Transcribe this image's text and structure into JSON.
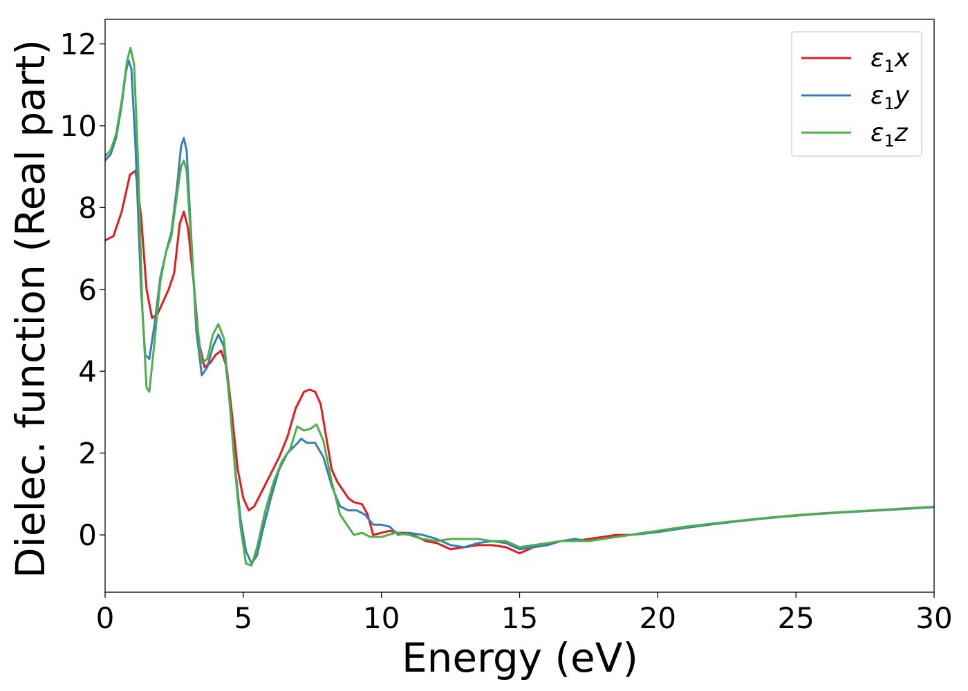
{
  "chart_data": {
    "type": "line",
    "title": "",
    "xlabel": "Energy (eV)",
    "ylabel": "Dielec. function (Real part)",
    "xlim": [
      0,
      30
    ],
    "ylim": [
      -1.4,
      12.6
    ],
    "xticks": [
      0,
      5,
      10,
      15,
      20,
      25,
      30
    ],
    "yticks": [
      0,
      2,
      4,
      6,
      8,
      10,
      12
    ],
    "grid": false,
    "legend_position": "top-right",
    "series": [
      {
        "name": "ε1x",
        "legend_base": "ε",
        "legend_sub": "1",
        "legend_var": "x",
        "color": "#e41a1c",
        "points": [
          [
            0,
            7.2
          ],
          [
            0.3,
            7.3
          ],
          [
            0.6,
            7.9
          ],
          [
            0.9,
            8.8
          ],
          [
            1.1,
            8.9
          ],
          [
            1.3,
            7.8
          ],
          [
            1.5,
            6.0
          ],
          [
            1.7,
            5.3
          ],
          [
            1.9,
            5.4
          ],
          [
            2.1,
            5.7
          ],
          [
            2.3,
            6.0
          ],
          [
            2.5,
            6.4
          ],
          [
            2.7,
            7.6
          ],
          [
            2.85,
            7.9
          ],
          [
            3.0,
            7.5
          ],
          [
            3.2,
            6.2
          ],
          [
            3.4,
            4.7
          ],
          [
            3.6,
            4.1
          ],
          [
            3.8,
            4.2
          ],
          [
            4.0,
            4.4
          ],
          [
            4.2,
            4.5
          ],
          [
            4.4,
            4.1
          ],
          [
            4.6,
            2.9
          ],
          [
            4.8,
            1.6
          ],
          [
            5.0,
            0.9
          ],
          [
            5.2,
            0.6
          ],
          [
            5.4,
            0.7
          ],
          [
            5.7,
            1.1
          ],
          [
            6.0,
            1.5
          ],
          [
            6.3,
            1.9
          ],
          [
            6.6,
            2.4
          ],
          [
            6.9,
            3.1
          ],
          [
            7.2,
            3.5
          ],
          [
            7.4,
            3.55
          ],
          [
            7.6,
            3.5
          ],
          [
            7.8,
            3.2
          ],
          [
            8.0,
            2.4
          ],
          [
            8.2,
            1.6
          ],
          [
            8.4,
            1.3
          ],
          [
            8.6,
            1.1
          ],
          [
            8.8,
            0.9
          ],
          [
            9.0,
            0.8
          ],
          [
            9.3,
            0.75
          ],
          [
            9.5,
            0.5
          ],
          [
            9.7,
            0.0
          ],
          [
            10.0,
            0.05
          ],
          [
            10.3,
            0.1
          ],
          [
            10.6,
            0.05
          ],
          [
            11.0,
            0.05
          ],
          [
            11.3,
            -0.05
          ],
          [
            11.6,
            -0.15
          ],
          [
            12.0,
            -0.2
          ],
          [
            12.5,
            -0.35
          ],
          [
            13.0,
            -0.3
          ],
          [
            13.5,
            -0.25
          ],
          [
            14.0,
            -0.25
          ],
          [
            14.5,
            -0.3
          ],
          [
            15.0,
            -0.45
          ],
          [
            15.5,
            -0.3
          ],
          [
            16.0,
            -0.25
          ],
          [
            16.5,
            -0.15
          ],
          [
            17.0,
            -0.15
          ],
          [
            17.5,
            -0.1
          ],
          [
            18.0,
            -0.05
          ],
          [
            18.5,
            0.0
          ],
          [
            19.0,
            0.0
          ],
          [
            19.5,
            0.05
          ],
          [
            20.0,
            0.1
          ],
          [
            21.0,
            0.2
          ],
          [
            22.0,
            0.27
          ],
          [
            23.0,
            0.35
          ],
          [
            24.0,
            0.42
          ],
          [
            25.0,
            0.48
          ],
          [
            26.0,
            0.53
          ],
          [
            27.0,
            0.57
          ],
          [
            28.0,
            0.6
          ],
          [
            29.0,
            0.64
          ],
          [
            30.0,
            0.68
          ]
        ]
      },
      {
        "name": "ε1y",
        "legend_base": "ε",
        "legend_sub": "1",
        "legend_var": "y",
        "color": "#377eb8",
        "points": [
          [
            0,
            9.15
          ],
          [
            0.2,
            9.3
          ],
          [
            0.4,
            9.7
          ],
          [
            0.6,
            10.5
          ],
          [
            0.75,
            11.3
          ],
          [
            0.85,
            11.6
          ],
          [
            0.95,
            11.4
          ],
          [
            1.1,
            9.5
          ],
          [
            1.3,
            6.0
          ],
          [
            1.45,
            4.4
          ],
          [
            1.6,
            4.3
          ],
          [
            1.8,
            5.2
          ],
          [
            2.0,
            6.3
          ],
          [
            2.2,
            6.9
          ],
          [
            2.4,
            7.4
          ],
          [
            2.6,
            8.5
          ],
          [
            2.75,
            9.5
          ],
          [
            2.85,
            9.7
          ],
          [
            2.95,
            9.4
          ],
          [
            3.1,
            7.5
          ],
          [
            3.3,
            5.0
          ],
          [
            3.5,
            3.9
          ],
          [
            3.7,
            4.1
          ],
          [
            3.9,
            4.6
          ],
          [
            4.1,
            4.9
          ],
          [
            4.3,
            4.6
          ],
          [
            4.5,
            3.3
          ],
          [
            4.7,
            1.7
          ],
          [
            4.9,
            0.4
          ],
          [
            5.1,
            -0.4
          ],
          [
            5.3,
            -0.7
          ],
          [
            5.5,
            -0.5
          ],
          [
            5.7,
            0.1
          ],
          [
            6.0,
            0.9
          ],
          [
            6.3,
            1.6
          ],
          [
            6.6,
            2.0
          ],
          [
            6.9,
            2.2
          ],
          [
            7.1,
            2.35
          ],
          [
            7.3,
            2.25
          ],
          [
            7.6,
            2.25
          ],
          [
            7.9,
            1.9
          ],
          [
            8.2,
            1.2
          ],
          [
            8.5,
            0.7
          ],
          [
            8.8,
            0.6
          ],
          [
            9.1,
            0.6
          ],
          [
            9.4,
            0.5
          ],
          [
            9.7,
            0.25
          ],
          [
            10.0,
            0.25
          ],
          [
            10.3,
            0.2
          ],
          [
            10.6,
            0.0
          ],
          [
            11.0,
            0.05
          ],
          [
            11.5,
            0.0
          ],
          [
            12.0,
            -0.1
          ],
          [
            12.5,
            -0.25
          ],
          [
            13.0,
            -0.3
          ],
          [
            13.5,
            -0.2
          ],
          [
            14.0,
            -0.15
          ],
          [
            14.5,
            -0.2
          ],
          [
            15.0,
            -0.35
          ],
          [
            15.5,
            -0.3
          ],
          [
            16.0,
            -0.25
          ],
          [
            16.5,
            -0.15
          ],
          [
            17.0,
            -0.1
          ],
          [
            17.5,
            -0.15
          ],
          [
            18.0,
            -0.1
          ],
          [
            18.5,
            -0.05
          ],
          [
            19.0,
            0.0
          ],
          [
            19.5,
            0.03
          ],
          [
            20.0,
            0.07
          ],
          [
            21.0,
            0.17
          ],
          [
            22.0,
            0.26
          ],
          [
            23.0,
            0.34
          ],
          [
            24.0,
            0.41
          ],
          [
            25.0,
            0.47
          ],
          [
            26.0,
            0.52
          ],
          [
            27.0,
            0.56
          ],
          [
            28.0,
            0.6
          ],
          [
            29.0,
            0.64
          ],
          [
            30.0,
            0.68
          ]
        ]
      },
      {
        "name": "ε1z",
        "legend_base": "ε",
        "legend_sub": "1",
        "legend_var": "z",
        "color": "#4daf4a",
        "points": [
          [
            0,
            9.25
          ],
          [
            0.2,
            9.4
          ],
          [
            0.4,
            9.8
          ],
          [
            0.6,
            10.6
          ],
          [
            0.8,
            11.6
          ],
          [
            0.92,
            11.9
          ],
          [
            1.05,
            11.5
          ],
          [
            1.2,
            9.0
          ],
          [
            1.35,
            5.5
          ],
          [
            1.5,
            3.6
          ],
          [
            1.6,
            3.5
          ],
          [
            1.8,
            4.8
          ],
          [
            2.0,
            6.2
          ],
          [
            2.2,
            6.9
          ],
          [
            2.4,
            7.3
          ],
          [
            2.6,
            8.3
          ],
          [
            2.75,
            9.0
          ],
          [
            2.85,
            9.15
          ],
          [
            2.95,
            8.9
          ],
          [
            3.1,
            7.3
          ],
          [
            3.3,
            5.3
          ],
          [
            3.5,
            4.2
          ],
          [
            3.7,
            4.3
          ],
          [
            3.9,
            4.9
          ],
          [
            4.1,
            5.15
          ],
          [
            4.3,
            4.8
          ],
          [
            4.5,
            3.3
          ],
          [
            4.7,
            1.6
          ],
          [
            4.9,
            0.2
          ],
          [
            5.1,
            -0.7
          ],
          [
            5.3,
            -0.75
          ],
          [
            5.5,
            -0.3
          ],
          [
            5.8,
            0.6
          ],
          [
            6.1,
            1.3
          ],
          [
            6.4,
            1.8
          ],
          [
            6.7,
            2.1
          ],
          [
            6.95,
            2.65
          ],
          [
            7.2,
            2.55
          ],
          [
            7.45,
            2.6
          ],
          [
            7.65,
            2.7
          ],
          [
            7.9,
            2.3
          ],
          [
            8.2,
            1.3
          ],
          [
            8.5,
            0.5
          ],
          [
            8.8,
            0.2
          ],
          [
            9.0,
            0.0
          ],
          [
            9.3,
            0.05
          ],
          [
            9.6,
            -0.05
          ],
          [
            10.0,
            -0.05
          ],
          [
            10.5,
            0.05
          ],
          [
            11.0,
            0.0
          ],
          [
            11.5,
            -0.1
          ],
          [
            12.0,
            -0.15
          ],
          [
            12.5,
            -0.1
          ],
          [
            13.0,
            -0.1
          ],
          [
            13.5,
            -0.1
          ],
          [
            14.0,
            -0.15
          ],
          [
            14.5,
            -0.15
          ],
          [
            15.0,
            -0.3
          ],
          [
            15.5,
            -0.25
          ],
          [
            16.0,
            -0.2
          ],
          [
            16.5,
            -0.15
          ],
          [
            17.0,
            -0.15
          ],
          [
            17.5,
            -0.15
          ],
          [
            18.0,
            -0.1
          ],
          [
            18.5,
            -0.05
          ],
          [
            19.0,
            0.0
          ],
          [
            19.5,
            0.05
          ],
          [
            20.0,
            0.1
          ],
          [
            21.0,
            0.2
          ],
          [
            22.0,
            0.28
          ],
          [
            23.0,
            0.35
          ],
          [
            24.0,
            0.42
          ],
          [
            25.0,
            0.48
          ],
          [
            26.0,
            0.53
          ],
          [
            27.0,
            0.57
          ],
          [
            28.0,
            0.61
          ],
          [
            29.0,
            0.65
          ],
          [
            30.0,
            0.69
          ]
        ]
      }
    ]
  }
}
